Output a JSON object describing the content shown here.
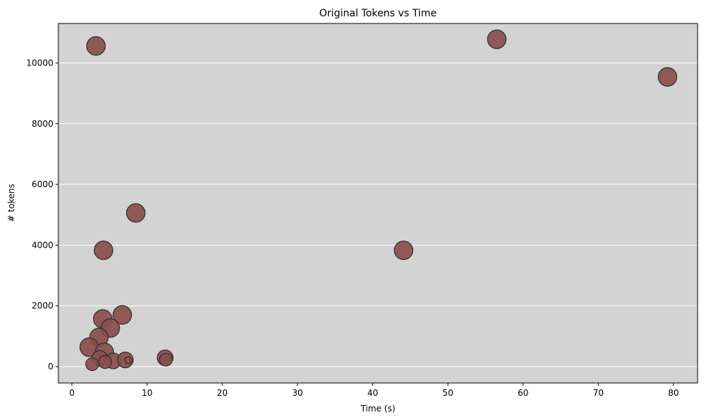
{
  "chart_data": {
    "type": "scatter",
    "title": "Original Tokens vs Time",
    "xlabel": "Time (s)",
    "ylabel": "# tokens",
    "xlim": [
      -1.8,
      83.2
    ],
    "ylim": [
      -540,
      11300
    ],
    "xticks": [
      0,
      10,
      20,
      30,
      40,
      50,
      60,
      70,
      80
    ],
    "yticks": [
      0,
      2000,
      4000,
      6000,
      8000,
      10000
    ],
    "grid": "horizontal",
    "colors": {
      "background": "#d3d3d3",
      "marker_fill": "#8b4d4d",
      "marker_edge": "#333333",
      "grid": "#ffffff"
    },
    "points": [
      {
        "x": 3.2,
        "y": 10560,
        "r": "large"
      },
      {
        "x": 56.5,
        "y": 10780,
        "r": "large"
      },
      {
        "x": 79.2,
        "y": 9540,
        "r": "large"
      },
      {
        "x": 8.5,
        "y": 5060,
        "r": "large"
      },
      {
        "x": 4.2,
        "y": 3830,
        "r": "large"
      },
      {
        "x": 44.1,
        "y": 3830,
        "r": "large"
      },
      {
        "x": 6.7,
        "y": 1700,
        "r": "large"
      },
      {
        "x": 4.1,
        "y": 1570,
        "r": "large"
      },
      {
        "x": 5.1,
        "y": 1270,
        "r": "large"
      },
      {
        "x": 3.6,
        "y": 960,
        "r": "large"
      },
      {
        "x": 2.3,
        "y": 640,
        "r": "large"
      },
      {
        "x": 4.3,
        "y": 470,
        "r": "large"
      },
      {
        "x": 3.7,
        "y": 270,
        "r": "medium"
      },
      {
        "x": 5.5,
        "y": 190,
        "r": "medium"
      },
      {
        "x": 7.1,
        "y": 220,
        "r": "medium"
      },
      {
        "x": 12.4,
        "y": 290,
        "r": "medium"
      },
      {
        "x": 12.5,
        "y": 230,
        "r": "small"
      },
      {
        "x": 4.4,
        "y": 150,
        "r": "small"
      },
      {
        "x": 2.7,
        "y": 80,
        "r": "small"
      },
      {
        "x": 7.5,
        "y": 210,
        "r": "tiny"
      }
    ]
  }
}
